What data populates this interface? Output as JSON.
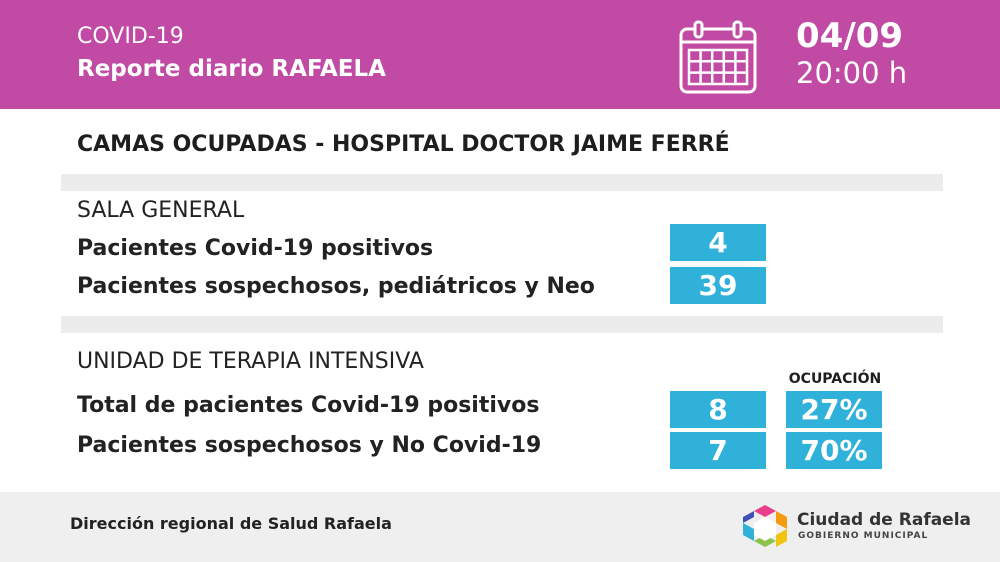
{
  "header": {
    "covid": "COVID-19",
    "report": "Reporte diario RAFAELA",
    "date": "04/09",
    "time": "20:00 h",
    "icon": "calendar-icon"
  },
  "main_title": "CAMAS OCUPADAS - HOSPITAL DOCTOR JAIME FERRÉ",
  "sala_general": {
    "title": "SALA GENERAL",
    "rows": [
      {
        "label": "Pacientes Covid-19 positivos",
        "value": "4"
      },
      {
        "label": "Pacientes sospechosos, pediátricos y Neo",
        "value": "39"
      }
    ]
  },
  "uti": {
    "title": "UNIDAD DE TERAPIA INTENSIVA",
    "occupancy_label": "OCUPACIÓN",
    "rows": [
      {
        "label": "Total de pacientes Covid-19 positivos",
        "value": "8",
        "occupancy": "27%"
      },
      {
        "label": "Pacientes sospechosos y No Covid-19",
        "value": "7",
        "occupancy": "70%"
      }
    ]
  },
  "footer": {
    "text": "Dirección regional de Salud Rafaela",
    "logo_name": "Ciudad de Rafaela",
    "logo_sub": "GOBIERNO MUNICIPAL"
  },
  "colors": {
    "header_bg": "#c04aa4",
    "value_box": "#2fb1d9",
    "divider": "#ececec",
    "footer_bg": "#efefef"
  }
}
